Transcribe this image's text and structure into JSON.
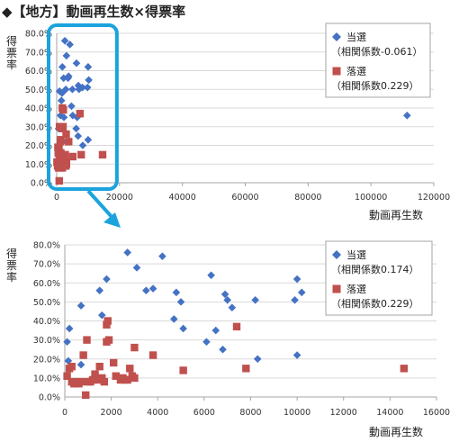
{
  "title": "◆【地方】動画再生数×得票率",
  "colors": {
    "elected": "#4472C4",
    "defeated": "#C0504D",
    "highlight": "#1BA3DD",
    "grid": "#D9D9D9"
  },
  "chart_data": [
    {
      "type": "scatter",
      "xlabel": "動画再生数",
      "ylabel": "得票率",
      "xlim": [
        0,
        120000
      ],
      "ylim": [
        0,
        0.8
      ],
      "x_ticks": [
        "0",
        "20000",
        "40000",
        "60000",
        "80000",
        "100000",
        "120000"
      ],
      "y_ticks": [
        "0.0%",
        "10.0%",
        "20.0%",
        "30.0%",
        "40.0%",
        "50.0%",
        "60.0%",
        "70.0%",
        "80.0%"
      ],
      "series": [
        {
          "name": "当選",
          "legend_name": "当選",
          "legend_sub": "（相関係数-0.061）",
          "marker": "diamond",
          "points": [
            [
              600,
              0.29
            ],
            [
              900,
              0.49
            ],
            [
              1200,
              0.36
            ],
            [
              1500,
              0.44
            ],
            [
              1800,
              0.62
            ],
            [
              2000,
              0.22
            ],
            [
              2200,
              0.56
            ],
            [
              2300,
              0.35
            ],
            [
              2600,
              0.76
            ],
            [
              2900,
              0.5
            ],
            [
              3100,
              0.68
            ],
            [
              3600,
              0.56
            ],
            [
              3800,
              0.57
            ],
            [
              4200,
              0.74
            ],
            [
              4700,
              0.41
            ],
            [
              5100,
              0.36
            ],
            [
              6200,
              0.29
            ],
            [
              6300,
              0.64
            ],
            [
              6500,
              0.35
            ],
            [
              6800,
              0.25
            ],
            [
              6900,
              0.52
            ],
            [
              7100,
              0.5
            ],
            [
              8200,
              0.51
            ],
            [
              8300,
              0.2
            ],
            [
              9800,
              0.51
            ],
            [
              10000,
              0.62
            ],
            [
              10000,
              0.23
            ],
            [
              10200,
              0.55
            ],
            [
              700,
              0.19
            ],
            [
              1700,
              0.48
            ],
            [
              5000,
              0.5
            ],
            [
              111500,
              0.36
            ]
          ]
        },
        {
          "name": "落選",
          "legend_name": "落選",
          "legend_sub": "（相関係数0.229）",
          "marker": "square",
          "points": [
            [
              100,
              0.11
            ],
            [
              300,
              0.09
            ],
            [
              400,
              0.19
            ],
            [
              500,
              0.16
            ],
            [
              600,
              0.08
            ],
            [
              700,
              0.18
            ],
            [
              800,
              0.14
            ],
            [
              900,
              0.1
            ],
            [
              1000,
              0.08
            ],
            [
              1100,
              0.09
            ],
            [
              1200,
              0.22
            ],
            [
              1300,
              0.16
            ],
            [
              1400,
              0.08
            ],
            [
              1500,
              0.1
            ],
            [
              1600,
              0.09
            ],
            [
              1700,
              0.13
            ],
            [
              1800,
              0.08
            ],
            [
              1900,
              0.29
            ],
            [
              2000,
              0.3
            ],
            [
              2100,
              0.39
            ],
            [
              2200,
              0.11
            ],
            [
              2400,
              0.09
            ],
            [
              2500,
              0.1
            ],
            [
              2700,
              0.15
            ],
            [
              2800,
              0.11
            ],
            [
              2900,
              0.09
            ],
            [
              3000,
              0.26
            ],
            [
              3100,
              0.1
            ],
            [
              3800,
              0.22
            ],
            [
              5100,
              0.14
            ],
            [
              7400,
              0.37
            ],
            [
              7800,
              0.15
            ],
            [
              14600,
              0.15
            ],
            [
              800,
              0.01
            ],
            [
              900,
              0.3
            ],
            [
              1800,
              0.4
            ],
            [
              1300,
              0.23
            ]
          ]
        }
      ]
    },
    {
      "type": "scatter",
      "xlabel": "動画再生数",
      "ylabel": "得票率",
      "xlim": [
        0,
        16000
      ],
      "ylim": [
        0,
        0.8
      ],
      "x_ticks": [
        "0",
        "2000",
        "4000",
        "6000",
        "8000",
        "10000",
        "12000",
        "14000",
        "16000"
      ],
      "y_ticks": [
        "0.0%",
        "10.0%",
        "20.0%",
        "30.0%",
        "40.0%",
        "50.0%",
        "60.0%",
        "70.0%",
        "80.0%"
      ],
      "series": [
        {
          "name": "当選",
          "legend_name": "当選",
          "legend_sub": "（相関係数0.174）",
          "marker": "diamond",
          "points": [
            [
              100,
              0.29
            ],
            [
              200,
              0.36
            ],
            [
              150,
              0.19
            ],
            [
              700,
              0.17
            ],
            [
              700,
              0.48
            ],
            [
              1500,
              0.56
            ],
            [
              1600,
              0.43
            ],
            [
              1800,
              0.62
            ],
            [
              2700,
              0.76
            ],
            [
              3100,
              0.68
            ],
            [
              3500,
              0.56
            ],
            [
              3800,
              0.57
            ],
            [
              4200,
              0.74
            ],
            [
              4700,
              0.41
            ],
            [
              4800,
              0.55
            ],
            [
              5000,
              0.5
            ],
            [
              5100,
              0.36
            ],
            [
              6100,
              0.29
            ],
            [
              6300,
              0.64
            ],
            [
              6500,
              0.35
            ],
            [
              6800,
              0.25
            ],
            [
              6900,
              0.54
            ],
            [
              7000,
              0.51
            ],
            [
              7200,
              0.47
            ],
            [
              8200,
              0.51
            ],
            [
              8300,
              0.2
            ],
            [
              9900,
              0.51
            ],
            [
              10000,
              0.62
            ],
            [
              10000,
              0.22
            ],
            [
              10200,
              0.55
            ]
          ]
        },
        {
          "name": "落選",
          "legend_name": "落選",
          "legend_sub": "（相関係数0.229）",
          "marker": "square",
          "points": [
            [
              100,
              0.11
            ],
            [
              200,
              0.15
            ],
            [
              300,
              0.16
            ],
            [
              300,
              0.08
            ],
            [
              400,
              0.07
            ],
            [
              500,
              0.08
            ],
            [
              600,
              0.07
            ],
            [
              700,
              0.08
            ],
            [
              800,
              0.22
            ],
            [
              900,
              0.01
            ],
            [
              950,
              0.3
            ],
            [
              1000,
              0.08
            ],
            [
              1100,
              0.08
            ],
            [
              1200,
              0.09
            ],
            [
              1300,
              0.12
            ],
            [
              1400,
              0.09
            ],
            [
              1500,
              0.16
            ],
            [
              1600,
              0.1
            ],
            [
              1700,
              0.08
            ],
            [
              1800,
              0.29
            ],
            [
              1800,
              0.38
            ],
            [
              1850,
              0.4
            ],
            [
              1900,
              0.3
            ],
            [
              2100,
              0.18
            ],
            [
              2200,
              0.11
            ],
            [
              2400,
              0.09
            ],
            [
              2500,
              0.1
            ],
            [
              2600,
              0.09
            ],
            [
              2700,
              0.09
            ],
            [
              2800,
              0.15
            ],
            [
              2900,
              0.11
            ],
            [
              3000,
              0.1
            ],
            [
              3000,
              0.26
            ],
            [
              3800,
              0.22
            ],
            [
              5100,
              0.14
            ],
            [
              7400,
              0.37
            ],
            [
              7800,
              0.15
            ],
            [
              14600,
              0.15
            ]
          ]
        }
      ]
    }
  ]
}
